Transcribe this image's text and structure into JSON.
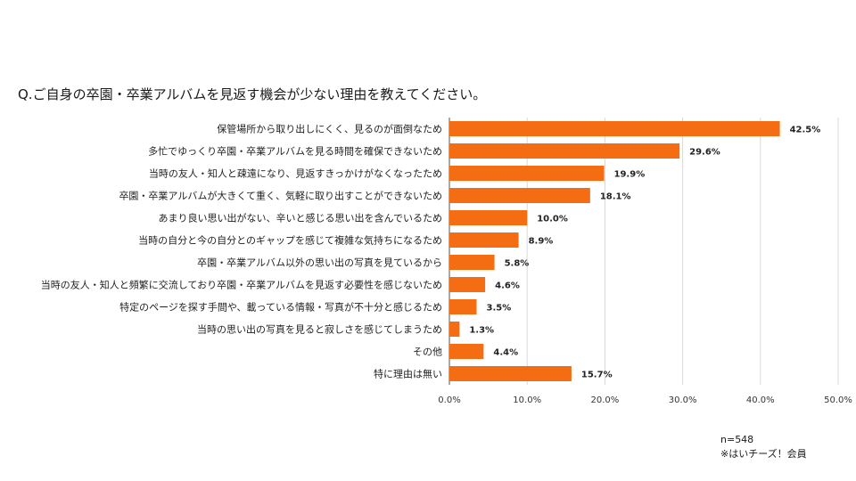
{
  "chart_data": {
    "type": "bar",
    "orientation": "horizontal",
    "title": "Q.ご自身の卒園・卒業アルバムを見返す機会が少ない理由を教えてください。",
    "categories": [
      "保管場所から取り出しにくく、見るのが面倒なため",
      "多忙でゆっくり卒園・卒業アルバムを見る時間を確保できないため",
      "当時の友人・知人と疎遠になり、見返すきっかけがなくなったため",
      "卒園・卒業アルバムが大きくて重く、気軽に取り出すことができないため",
      "あまり良い思い出がない、辛いと感じる思い出を含んでいるため",
      "当時の自分と今の自分とのギャップを感じて複雑な気持ちになるため",
      "卒園・卒業アルバム以外の思い出の写真を見ているから",
      "当時の友人・知人と頻繁に交流しており卒園・卒業アルバムを見返す必要性を感じないため",
      "特定のページを探す手間や、載っている情報・写真が不十分と感じるため",
      "当時の思い出の写真を見ると寂しさを感じてしまうため",
      "その他",
      "特に理由は無い"
    ],
    "values": [
      42.5,
      29.6,
      19.9,
      18.1,
      10.0,
      8.9,
      5.8,
      4.6,
      3.5,
      1.3,
      4.4,
      15.7
    ],
    "value_labels": [
      "42.5%",
      "29.6%",
      "19.9%",
      "18.1%",
      "10.0%",
      "8.9%",
      "5.8%",
      "4.6%",
      "3.5%",
      "1.3%",
      "4.4%",
      "15.7%"
    ],
    "xlim": [
      0,
      50
    ],
    "xticks": [
      0,
      10,
      20,
      30,
      40,
      50
    ],
    "xtick_labels": [
      "0.0%",
      "10.0%",
      "20.0%",
      "30.0%",
      "40.0%",
      "50.0%"
    ],
    "grid": true,
    "bar_color": "#f46d12"
  },
  "notes": {
    "sample_size": "n=548",
    "footnote": "※はいチーズ！会員"
  }
}
